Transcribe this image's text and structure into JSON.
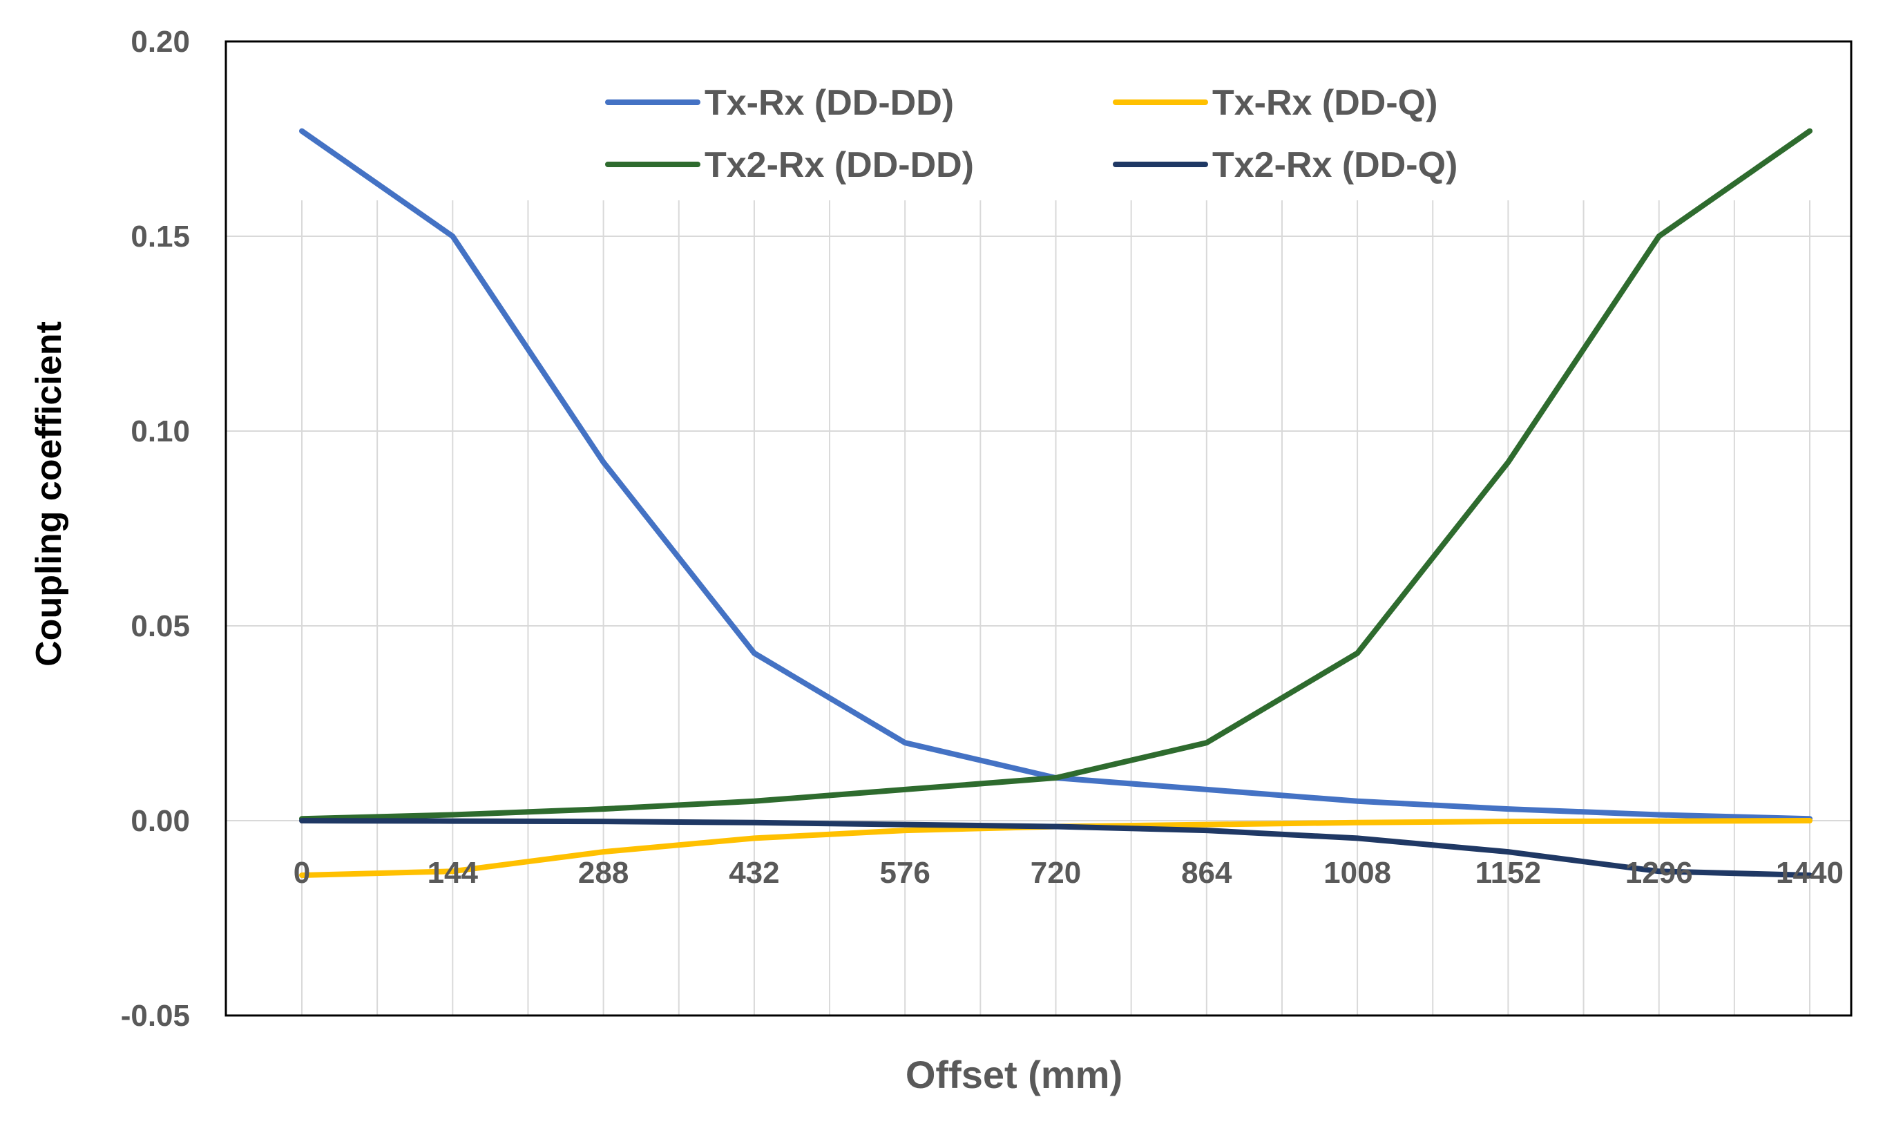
{
  "chart_data": {
    "type": "line",
    "title": "",
    "xlabel": "Offset (mm)",
    "ylabel": "Coupling coefficient",
    "x": [
      0,
      144,
      288,
      432,
      576,
      720,
      864,
      1008,
      1152,
      1296,
      1440
    ],
    "x_tick_labels": [
      "0",
      "144",
      "288",
      "432",
      "576",
      "720",
      "864",
      "1008",
      "1152",
      "1296",
      "1440"
    ],
    "ylim": [
      -0.05,
      0.2
    ],
    "y_ticks": [
      -0.05,
      0.0,
      0.05,
      0.1,
      0.15,
      0.2
    ],
    "y_tick_labels": [
      "-0.05",
      "0.00",
      "0.05",
      "0.10",
      "0.15",
      "0.20"
    ],
    "grid": true,
    "legend_position": "top",
    "series": [
      {
        "name": "Tx-Rx (DD-DD)",
        "color": "#4472C4",
        "values": [
          0.177,
          0.15,
          0.092,
          0.043,
          0.02,
          0.011,
          0.008,
          0.005,
          0.003,
          0.0015,
          0.0005
        ]
      },
      {
        "name": "Tx-Rx (DD-Q)",
        "color": "#FFC000",
        "values": [
          -0.014,
          -0.013,
          -0.008,
          -0.0045,
          -0.0025,
          -0.0015,
          -0.001,
          -0.0005,
          -0.0002,
          -0.0001,
          0.0
        ]
      },
      {
        "name": "Tx2-Rx (DD-DD)",
        "color": "#2E6B2E",
        "values": [
          0.0005,
          0.0015,
          0.003,
          0.005,
          0.008,
          0.011,
          0.02,
          0.043,
          0.092,
          0.15,
          0.177
        ]
      },
      {
        "name": "Tx2-Rx (DD-Q)",
        "color": "#1F3864",
        "values": [
          0.0,
          -0.0001,
          -0.0002,
          -0.0005,
          -0.001,
          -0.0015,
          -0.0025,
          -0.0045,
          -0.008,
          -0.013,
          -0.014
        ]
      }
    ]
  }
}
